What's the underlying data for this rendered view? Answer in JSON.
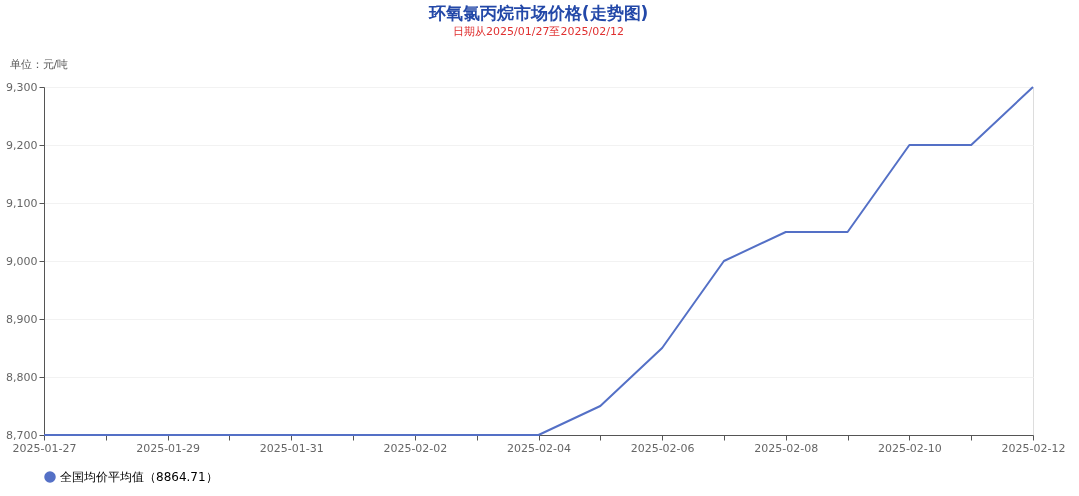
{
  "chart_data": {
    "type": "line",
    "title": "环氧氯丙烷市场价格(走势图)",
    "subtitle": "日期从2025/01/27至2025/02/12",
    "ylabel": "单位：元/吨",
    "categories": [
      "2025-01-27",
      null,
      "2025-01-29",
      null,
      "2025-01-31",
      null,
      "2025-02-02",
      null,
      "2025-02-04",
      null,
      "2025-02-06",
      null,
      "2025-02-08",
      null,
      "2025-02-10",
      null,
      "2025-02-12"
    ],
    "series": [
      {
        "name": "全国均价平均值（8864.71）",
        "color": "#5470c6",
        "values": [
          8700,
          8700,
          8700,
          8700,
          8700,
          8700,
          8700,
          8700,
          8700,
          8750,
          8850,
          9000,
          9050,
          9050,
          9200,
          9200,
          9300
        ]
      }
    ],
    "ylim": [
      8700,
      9300
    ],
    "yticks": [
      {
        "value": 8700,
        "label": "8,700"
      },
      {
        "value": 8800,
        "label": "8,800"
      },
      {
        "value": 8900,
        "label": "8,900"
      },
      {
        "value": 9000,
        "label": "9,000"
      },
      {
        "value": 9100,
        "label": "9,100"
      },
      {
        "value": 9200,
        "label": "9,200"
      },
      {
        "value": 9300,
        "label": "9,300"
      }
    ],
    "grid": "y",
    "legend": "bottom",
    "marker": "none",
    "line_style": "solid"
  }
}
